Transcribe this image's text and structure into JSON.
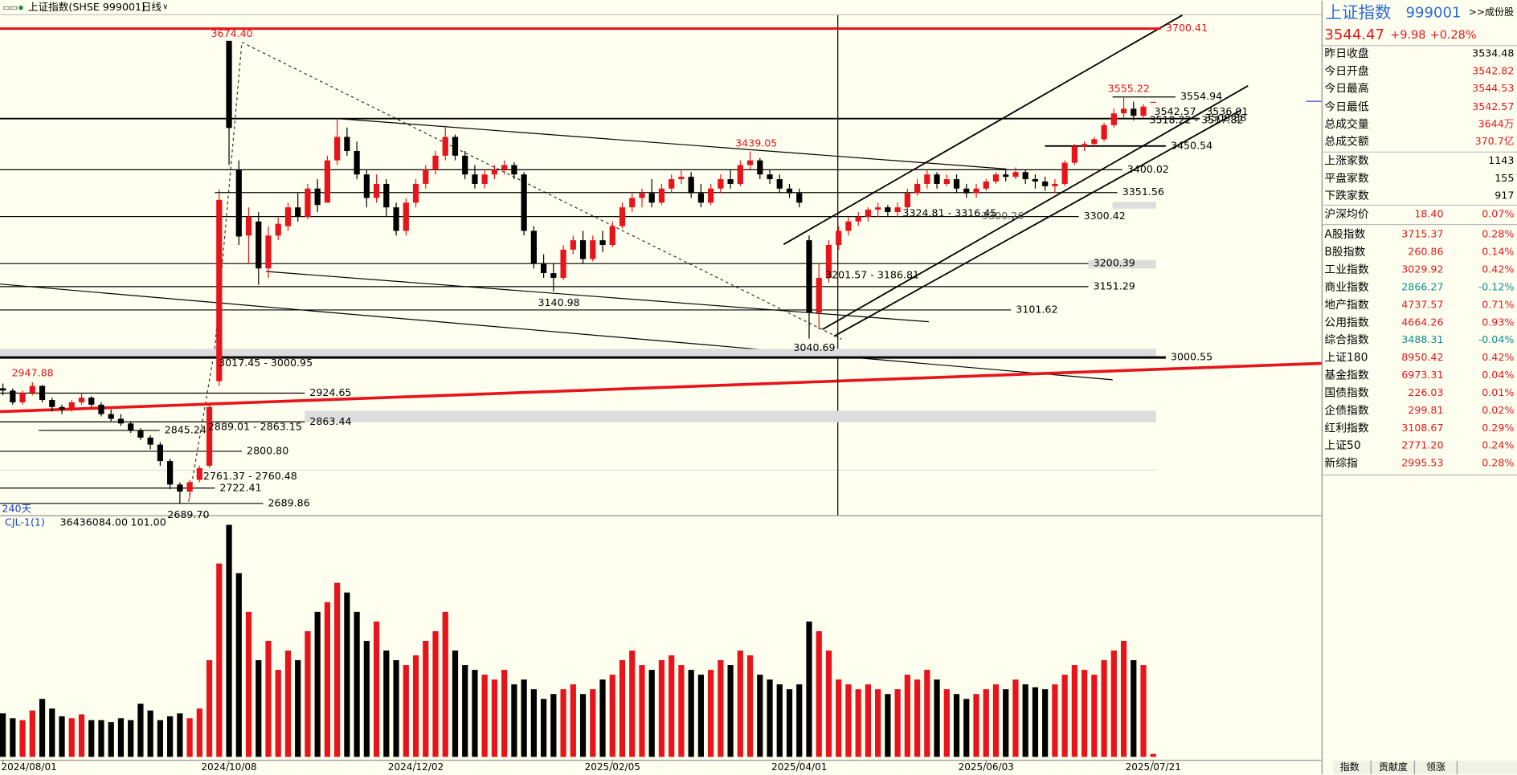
{
  "header": {
    "title": "上证指数(SHSE 999001)",
    "period": "日线"
  },
  "chart_data": [
    {
      "type": "candlestick",
      "days_label": "240天",
      "ohlc": [
        [
          2935,
          2945,
          2920,
          2930
        ],
        [
          2930,
          2935,
          2900,
          2905
        ],
        [
          2905,
          2930,
          2900,
          2925
        ],
        [
          2925,
          2947.88,
          2920,
          2940
        ],
        [
          2940,
          2942,
          2905,
          2910
        ],
        [
          2910,
          2915,
          2885,
          2895
        ],
        [
          2895,
          2900,
          2880,
          2890
        ],
        [
          2890,
          2910,
          2885,
          2905
        ],
        [
          2905,
          2925,
          2900,
          2915
        ],
        [
          2915,
          2918,
          2895,
          2900
        ],
        [
          2900,
          2905,
          2875,
          2880
        ],
        [
          2880,
          2890,
          2865,
          2870
        ],
        [
          2870,
          2880,
          2855,
          2860
        ],
        [
          2860,
          2865,
          2840,
          2845
        ],
        [
          2845,
          2850,
          2825,
          2830
        ],
        [
          2830,
          2835,
          2805,
          2815
        ],
        [
          2815,
          2820,
          2770,
          2780
        ],
        [
          2780,
          2785,
          2720,
          2730
        ],
        [
          2730,
          2735,
          2689.7,
          2715
        ],
        [
          2715,
          2740,
          2700,
          2735
        ],
        [
          2740,
          2770,
          2735,
          2765
        ],
        [
          2770,
          2900,
          2765,
          2895
        ],
        [
          2950,
          3358,
          2940,
          3336
        ],
        [
          3674.4,
          3674.4,
          3410,
          3489
        ],
        [
          3400,
          3420,
          3240,
          3258
        ],
        [
          3260,
          3320,
          3200,
          3300
        ],
        [
          3290,
          3310,
          3155,
          3190
        ],
        [
          3190,
          3280,
          3170,
          3260
        ],
        [
          3260,
          3300,
          3250,
          3285
        ],
        [
          3280,
          3330,
          3270,
          3320
        ],
        [
          3320,
          3350,
          3290,
          3300
        ],
        [
          3300,
          3370,
          3295,
          3360
        ],
        [
          3360,
          3380,
          3310,
          3325
        ],
        [
          3330,
          3430,
          3330,
          3420
        ],
        [
          3420,
          3509,
          3410,
          3470
        ],
        [
          3470,
          3490,
          3430,
          3440
        ],
        [
          3440,
          3460,
          3380,
          3390
        ],
        [
          3390,
          3400,
          3320,
          3340
        ],
        [
          3340,
          3390,
          3330,
          3370
        ],
        [
          3370,
          3380,
          3300,
          3320
        ],
        [
          3320,
          3330,
          3260,
          3270
        ],
        [
          3270,
          3340,
          3260,
          3330
        ],
        [
          3330,
          3380,
          3320,
          3370
        ],
        [
          3370,
          3410,
          3360,
          3400
        ],
        [
          3400,
          3440,
          3390,
          3430
        ],
        [
          3430,
          3494,
          3420,
          3470
        ],
        [
          3470,
          3475,
          3420,
          3430
        ],
        [
          3430,
          3440,
          3380,
          3390
        ],
        [
          3390,
          3410,
          3360,
          3370
        ],
        [
          3370,
          3400,
          3360,
          3390
        ],
        [
          3390,
          3410,
          3380,
          3400
        ],
        [
          3400,
          3420,
          3390,
          3410
        ],
        [
          3410,
          3416,
          3380,
          3390
        ],
        [
          3390,
          3395,
          3260,
          3270
        ],
        [
          3270,
          3280,
          3190,
          3200
        ],
        [
          3200,
          3220,
          3170,
          3180
        ],
        [
          3180,
          3200,
          3140.98,
          3170
        ],
        [
          3170,
          3240,
          3165,
          3230
        ],
        [
          3230,
          3260,
          3220,
          3250
        ],
        [
          3250,
          3270,
          3200,
          3210
        ],
        [
          3210,
          3260,
          3205,
          3250
        ],
        [
          3250,
          3270,
          3225,
          3240
        ],
        [
          3240,
          3290,
          3235,
          3280
        ],
        [
          3280,
          3330,
          3275,
          3320
        ],
        [
          3320,
          3350,
          3310,
          3340
        ],
        [
          3340,
          3360,
          3320,
          3350
        ],
        [
          3350,
          3380,
          3320,
          3330
        ],
        [
          3330,
          3370,
          3325,
          3360
        ],
        [
          3360,
          3390,
          3350,
          3380
        ],
        [
          3380,
          3400,
          3370,
          3385
        ],
        [
          3385,
          3395,
          3340,
          3350
        ],
        [
          3350,
          3370,
          3320,
          3330
        ],
        [
          3330,
          3370,
          3325,
          3360
        ],
        [
          3360,
          3390,
          3350,
          3380
        ],
        [
          3380,
          3400,
          3360,
          3370
        ],
        [
          3370,
          3420,
          3365,
          3410
        ],
        [
          3410,
          3439.05,
          3400,
          3420
        ],
        [
          3420,
          3425,
          3380,
          3390
        ],
        [
          3390,
          3400,
          3370,
          3380
        ],
        [
          3380,
          3390,
          3350,
          3360
        ],
        [
          3360,
          3370,
          3340,
          3350
        ],
        [
          3350,
          3360,
          3320,
          3330
        ],
        [
          3250,
          3260,
          3040.69,
          3096
        ],
        [
          3096,
          3200,
          3060,
          3170
        ],
        [
          3170,
          3250,
          3160,
          3240
        ],
        [
          3240,
          3280,
          3230,
          3270
        ],
        [
          3270,
          3300,
          3260,
          3290
        ],
        [
          3290,
          3310,
          3280,
          3300
        ],
        [
          3300,
          3320,
          3290,
          3315
        ],
        [
          3315,
          3330,
          3300,
          3320
        ],
        [
          3320,
          3325,
          3300,
          3310
        ],
        [
          3310,
          3330,
          3300,
          3320
        ],
        [
          3320,
          3360,
          3315,
          3350
        ],
        [
          3350,
          3380,
          3345,
          3370
        ],
        [
          3370,
          3400,
          3360,
          3390
        ],
        [
          3390,
          3395,
          3360,
          3370
        ],
        [
          3370,
          3390,
          3365,
          3380
        ],
        [
          3380,
          3390,
          3350,
          3360
        ],
        [
          3360,
          3370,
          3340,
          3350
        ],
        [
          3350,
          3370,
          3340,
          3360
        ],
        [
          3360,
          3380,
          3355,
          3375
        ],
        [
          3375,
          3395,
          3370,
          3390
        ],
        [
          3390,
          3400,
          3375,
          3385
        ],
        [
          3385,
          3405,
          3380,
          3395
        ],
        [
          3395,
          3400,
          3370,
          3380
        ],
        [
          3380,
          3390,
          3360,
          3375
        ],
        [
          3375,
          3385,
          3355,
          3365
        ],
        [
          3365,
          3380,
          3350,
          3370
        ],
        [
          3370,
          3420,
          3365,
          3415
        ],
        [
          3415,
          3455,
          3410,
          3450
        ],
        [
          3450,
          3460,
          3440,
          3455
        ],
        [
          3455,
          3470,
          3450,
          3465
        ],
        [
          3465,
          3500,
          3460,
          3495
        ],
        [
          3495,
          3530,
          3490,
          3520
        ],
        [
          3520,
          3555.22,
          3510,
          3530
        ],
        [
          3530,
          3545,
          3505,
          3515
        ],
        [
          3515,
          3540,
          3510,
          3534.48
        ],
        [
          3542.82,
          3544.53,
          3542.57,
          3544.47
        ]
      ],
      "xlim": [
        0,
        117
      ],
      "ylim": [
        2669,
        3729
      ],
      "xticks": [
        {
          "value": 0,
          "label": "2024/08/01"
        },
        {
          "value": 23,
          "label": "2024/10/08"
        },
        {
          "value": 42,
          "label": "2024/12/02"
        },
        {
          "value": 62,
          "label": "2025/02/05"
        },
        {
          "value": 81,
          "label": "2025/04/01"
        },
        {
          "value": 100,
          "label": "2025/06/03"
        },
        {
          "value": 117,
          "label": "2025/07/21"
        }
      ],
      "levels": [
        3700.41,
        3554.94,
        3508.88,
        3450.54,
        3400.02,
        3351.56,
        3300.42,
        3200.39,
        3151.29,
        3101.62,
        3000.55,
        2924.65,
        2863.44,
        2845.24,
        {
          "value": 2800.8,
          "label": "2800.80"
        },
        2722.41,
        2689.86
      ],
      "price_labels": [
        {
          "value": 3674.4,
          "label": "3674.40"
        },
        2947.88,
        3439.05,
        3140.98,
        3040.69,
        3555.22,
        {
          "value": 2689.7,
          "label": "2689.70"
        },
        3300.26
      ],
      "range_labels": [
        "3017.45 - 3000.95",
        "2889.01 - 2863.15",
        "2761.37 - 2760.48",
        "3201.57 - 3186.81",
        "3324.81 - 3316.45",
        "3542.57 - 3536.01",
        "3518.22 - 3517.82"
      ]
    },
    {
      "type": "bar",
      "title": "CJL-1(1)",
      "readout": [
        "36436084.00",
        "101.00"
      ],
      "ylim": [
        0,
        2904000000.0
      ],
      "values": [
        540000000.0,
        480000000.0,
        456000000.0,
        576000000.0,
        720000000.0,
        600000000.0,
        504000000.0,
        480000000.0,
        528000000.0,
        456000000.0,
        456000000.0,
        432000000.0,
        480000000.0,
        456000000.0,
        660000000.0,
        576000000.0,
        456000000.0,
        504000000.0,
        540000000.0,
        480000000.0,
        600000000.0,
        1200000000.0,
        2400000000.0,
        2880000000.0,
        2280000000.0,
        1800000000.0,
        1200000000.0,
        1440000000.0,
        1080000000.0,
        1320000000.0,
        1200000000.0,
        1560000000.0,
        1800000000.0,
        1920000000.0,
        2160000000.0,
        2040000000.0,
        1800000000.0,
        1440000000.0,
        1680000000.0,
        1320000000.0,
        1200000000.0,
        1140000000.0,
        1260000000.0,
        1440000000.0,
        1560000000.0,
        1800000000.0,
        1320000000.0,
        1140000000.0,
        1080000000.0,
        1020000000.0,
        960000000.0,
        1080000000.0,
        900000000.0,
        960000000.0,
        840000000.0,
        720000000.0,
        780000000.0,
        840000000.0,
        900000000.0,
        780000000.0,
        840000000.0,
        960000000.0,
        1020000000.0,
        1200000000.0,
        1320000000.0,
        1140000000.0,
        1080000000.0,
        1200000000.0,
        1260000000.0,
        1140000000.0,
        1080000000.0,
        1020000000.0,
        1080000000.0,
        1200000000.0,
        1140000000.0,
        1320000000.0,
        1260000000.0,
        1020000000.0,
        960000000.0,
        900000000.0,
        840000000.0,
        900000000.0,
        1680000000.0,
        1560000000.0,
        1320000000.0,
        960000000.0,
        900000000.0,
        840000000.0,
        900000000.0,
        840000000.0,
        780000000.0,
        840000000.0,
        1020000000.0,
        960000000.0,
        1080000000.0,
        960000000.0,
        840000000.0,
        780000000.0,
        720000000.0,
        780000000.0,
        840000000.0,
        900000000.0,
        840000000.0,
        960000000.0,
        900000000.0,
        864000000.0,
        840000000.0,
        900000000.0,
        1020000000.0,
        1140000000.0,
        1080000000.0,
        1020000000.0,
        1200000000.0,
        1320000000.0,
        1440000000.0,
        1200000000.0,
        1140000000.0,
        36436084
      ]
    }
  ],
  "quote_panel": {
    "name": "上证指数",
    "code": "999001",
    "link": ">>成份股",
    "price": "3544.47",
    "change": "+9.98",
    "change_pct": "+0.28%",
    "rows": [
      [
        "昨日收盘",
        "3534.48"
      ],
      [
        "今日开盘",
        "3542.82"
      ],
      [
        "今日最高",
        "3544.53"
      ],
      [
        "今日最低",
        "3542.57"
      ],
      [
        "总成交量",
        "3644万"
      ],
      [
        "总成交额",
        "370.7亿"
      ],
      [
        "上涨家数",
        "1143"
      ],
      [
        "平盘家数",
        "155"
      ],
      [
        "下跌家数",
        "917"
      ]
    ],
    "indices": [
      [
        "沪深均价",
        "18.40",
        "0.07%"
      ],
      [
        "A股指数",
        "3715.37",
        "0.28%"
      ],
      [
        "B股指数",
        "260.86",
        "0.14%"
      ],
      [
        "工业指数",
        "3029.92",
        "0.42%"
      ],
      [
        "商业指数",
        "2866.27",
        "-0.12%"
      ],
      [
        "地产指数",
        "4737.57",
        "0.71%"
      ],
      [
        "公用指数",
        "4664.26",
        "0.93%"
      ],
      [
        "综合指数",
        "3488.31",
        "-0.04%"
      ],
      [
        "上证180",
        "8950.42",
        "0.42%"
      ],
      [
        "基金指数",
        "6973.31",
        "0.04%"
      ],
      [
        "国债指数",
        "226.03",
        "0.01%"
      ],
      [
        "企债指数",
        "299.81",
        "0.02%"
      ],
      [
        "红利指数",
        "3108.67",
        "0.29%"
      ],
      [
        "上证50",
        "2771.20",
        "0.24%"
      ],
      [
        "新综指",
        "2995.53",
        "0.28%"
      ]
    ]
  },
  "tabs": [
    "指数",
    "贡献度",
    "领涨"
  ]
}
